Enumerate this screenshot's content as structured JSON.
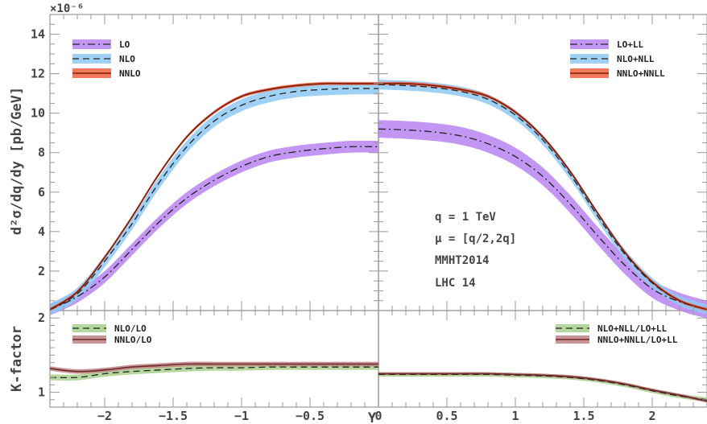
{
  "chart_data": [
    {
      "type": "line",
      "panel": "main",
      "scale_label": "×10⁻⁶",
      "ylabel": "d²σ/dq/dy [pb/GeV]",
      "ylim": [
        0,
        15
      ],
      "yticks": [
        2,
        4,
        6,
        8,
        10,
        12,
        14
      ],
      "annotations": [
        "q = 1 TeV",
        "μ = [q/2,2q]",
        "MMHT2014",
        "LHC 14"
      ],
      "legend_left": [
        "LO",
        "NLO",
        "NNLO"
      ],
      "legend_right": [
        "LO+LL",
        "NLO+NLL",
        "NNLO+NNLL"
      ],
      "x": [
        -2.4,
        -2.2,
        -2.0,
        -1.8,
        -1.6,
        -1.4,
        -1.2,
        -1.0,
        -0.8,
        -0.6,
        -0.4,
        -0.2,
        0.0
      ],
      "series": [
        {
          "name": "LO",
          "color": "#b784f0",
          "style": "dashdot",
          "y": [
            0.05,
            0.7,
            1.7,
            3.1,
            4.5,
            5.7,
            6.6,
            7.3,
            7.8,
            8.05,
            8.2,
            8.3,
            8.3
          ],
          "band": 0.3
        },
        {
          "name": "NLO",
          "color": "#8ec9f5",
          "style": "dashed",
          "y": [
            0.05,
            0.85,
            2.5,
            4.4,
            6.5,
            8.3,
            9.6,
            10.4,
            10.85,
            11.1,
            11.2,
            11.25,
            11.25
          ],
          "band": 0.3
        },
        {
          "name": "NNLO",
          "color": "#f06040",
          "style": "solid",
          "y": [
            0.05,
            0.95,
            2.7,
            4.75,
            6.95,
            8.8,
            10.05,
            10.85,
            11.2,
            11.4,
            11.5,
            11.5,
            11.5
          ],
          "band": 0.08
        }
      ],
      "x_right": [
        0.0,
        0.2,
        0.4,
        0.6,
        0.8,
        1.0,
        1.2,
        1.4,
        1.6,
        1.8,
        2.0,
        2.2,
        2.4
      ],
      "series_right": [
        {
          "name": "LO+LL",
          "color": "#b784f0",
          "style": "dashdot",
          "y": [
            9.2,
            9.15,
            9.05,
            8.85,
            8.45,
            7.8,
            6.8,
            5.4,
            3.8,
            2.3,
            1.1,
            0.45,
            0.05
          ],
          "band": 0.45
        },
        {
          "name": "NLO+NLL",
          "color": "#8ec9f5",
          "style": "dashed",
          "y": [
            11.45,
            11.4,
            11.3,
            11.1,
            10.7,
            9.9,
            8.65,
            6.9,
            4.8,
            2.85,
            1.4,
            0.5,
            0.05
          ],
          "band": 0.25
        },
        {
          "name": "NNLO+NNLL",
          "color": "#f06040",
          "style": "solid",
          "y": [
            11.5,
            11.5,
            11.4,
            11.2,
            10.85,
            10.05,
            8.8,
            7.05,
            4.95,
            2.95,
            1.45,
            0.5,
            0.05
          ],
          "band": 0.08
        }
      ]
    },
    {
      "type": "line",
      "panel": "ratio",
      "ylabel": "K-factor",
      "xlabel": "Y",
      "ylim": [
        0.8,
        2.1
      ],
      "yticks": [
        1,
        2
      ],
      "xlim": [
        -2.4,
        2.4
      ],
      "xticks": [
        -2,
        -1.5,
        -1,
        -0.5,
        0,
        0.5,
        1,
        1.5,
        2
      ],
      "xtick_labels": [
        "−2",
        "−1.5",
        "−1",
        "−0.5",
        "0",
        "0.5",
        "1",
        "1.5",
        "2"
      ],
      "legend_left": [
        "NLO/LO",
        "NNLO/LO"
      ],
      "legend_right": [
        "NLO+NLL/LO+LL",
        "NNLO+NNLL/LO+LL"
      ],
      "x": [
        -2.4,
        -2.2,
        -2.0,
        -1.8,
        -1.6,
        -1.4,
        -1.2,
        -1.0,
        -0.8,
        -0.6,
        -0.4,
        -0.2,
        0.0
      ],
      "series": [
        {
          "name": "NLO/LO",
          "color": "#a8d08c",
          "style": "dashed",
          "y": [
            1.2,
            1.2,
            1.25,
            1.28,
            1.3,
            1.32,
            1.33,
            1.33,
            1.34,
            1.34,
            1.34,
            1.34,
            1.34
          ],
          "band": 0.04
        },
        {
          "name": "NNLO/LO",
          "color": "#c08080",
          "style": "solid",
          "y": [
            1.32,
            1.28,
            1.3,
            1.34,
            1.36,
            1.38,
            1.38,
            1.38,
            1.38,
            1.38,
            1.38,
            1.38,
            1.38
          ],
          "band": 0.03
        }
      ],
      "x_right": [
        0.0,
        0.2,
        0.4,
        0.6,
        0.8,
        1.0,
        1.2,
        1.4,
        1.6,
        1.8,
        2.0,
        2.2,
        2.4
      ],
      "series_right": [
        {
          "name": "NLO+NLL/LO+LL",
          "color": "#a8d08c",
          "style": "dashed",
          "y": [
            1.24,
            1.24,
            1.24,
            1.24,
            1.24,
            1.23,
            1.22,
            1.2,
            1.16,
            1.1,
            1.02,
            0.95,
            0.9
          ],
          "band": 0.03
        },
        {
          "name": "NNLO+NNLL/LO+LL",
          "color": "#c08080",
          "style": "solid",
          "y": [
            1.25,
            1.25,
            1.25,
            1.25,
            1.25,
            1.24,
            1.23,
            1.21,
            1.17,
            1.11,
            1.03,
            0.96,
            0.88
          ],
          "band": 0.02
        }
      ]
    }
  ]
}
